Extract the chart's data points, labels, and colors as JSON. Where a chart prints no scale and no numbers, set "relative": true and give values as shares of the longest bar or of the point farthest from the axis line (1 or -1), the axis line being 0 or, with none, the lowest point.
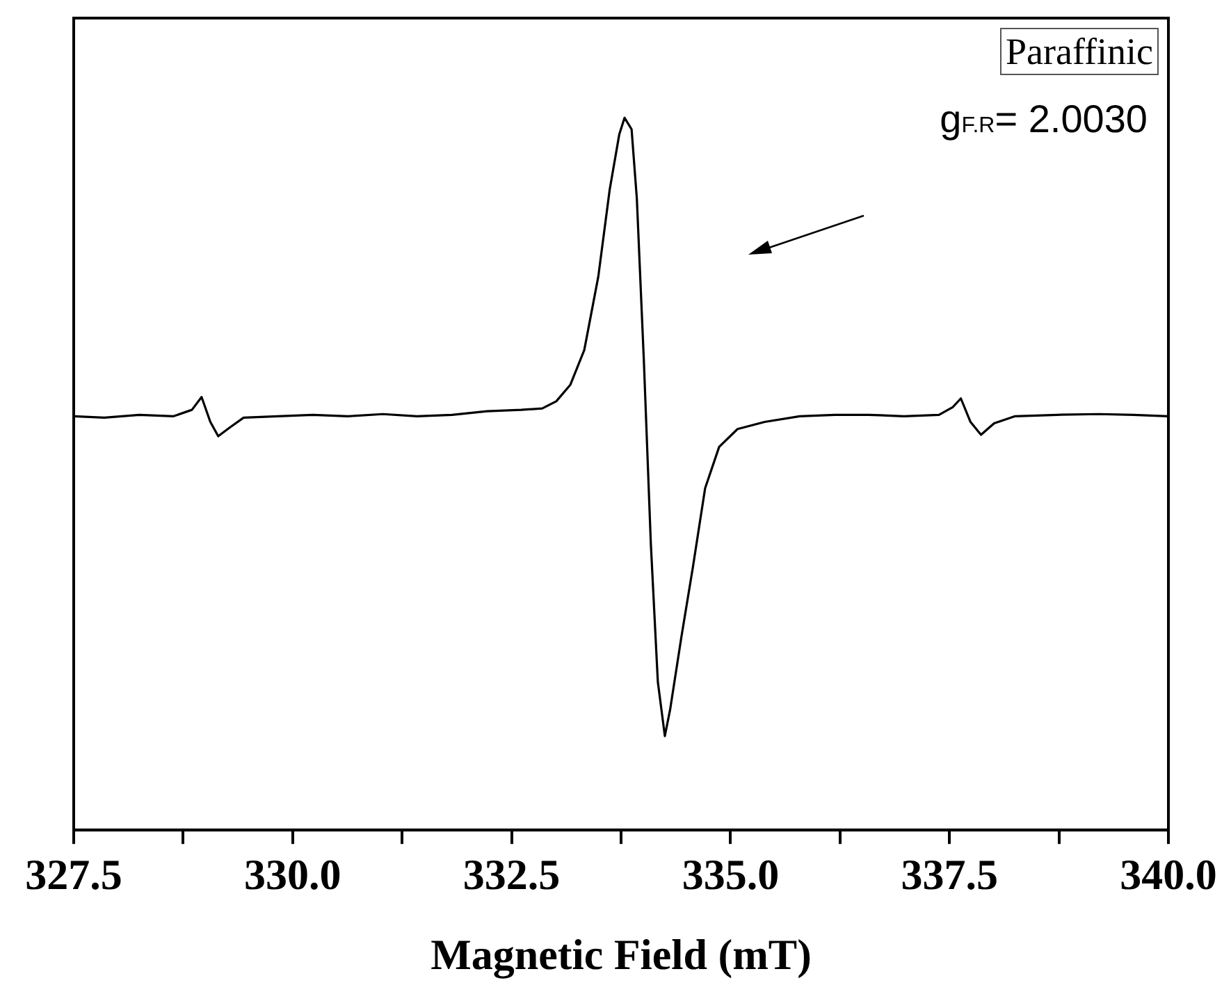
{
  "chart_data": {
    "type": "line",
    "relative": true,
    "xlabel": "Magnetic Field (mT)",
    "tick_labels": "x",
    "marker": "none",
    "line_style": "solid",
    "annotations": [
      "Paraffinic",
      "g$_{F.R}$= 2.0030"
    ],
    "xlim": [
      327.5,
      340.0
    ],
    "xticks": [
      {
        "value": 327.5,
        "label": "327.5"
      },
      {
        "value": 328.75,
        "label": null
      },
      {
        "value": 330,
        "label": "330.0"
      },
      {
        "value": 331.25,
        "label": null
      },
      {
        "value": 332.5,
        "label": "332.5"
      },
      {
        "value": 333.75,
        "label": null
      },
      {
        "value": 335,
        "label": "335.0"
      },
      {
        "value": 336.25,
        "label": null
      },
      {
        "value": 337.5,
        "label": "337.5"
      },
      {
        "value": 338.75,
        "label": null
      },
      {
        "value": 340,
        "label": "340.0"
      }
    ],
    "x": [
      327.5,
      327.85,
      328.25,
      328.64,
      328.85,
      328.96,
      329.06,
      329.15,
      329.28,
      329.44,
      329.83,
      330.23,
      330.63,
      331.03,
      331.42,
      331.82,
      332.22,
      332.61,
      332.85,
      333.01,
      333.17,
      333.33,
      333.49,
      333.62,
      333.73,
      333.79,
      333.87,
      333.93,
      334.01,
      334.09,
      334.17,
      334.25,
      334.31,
      334.44,
      334.57,
      334.71,
      334.87,
      335.08,
      335.39,
      335.79,
      336.19,
      336.58,
      336.98,
      337.38,
      337.54,
      337.63,
      337.74,
      337.86,
      338.01,
      338.25,
      338.73,
      339.21,
      339.6,
      340.0
    ],
    "series": [
      {
        "color": "#000000",
        "values": [
          0.581,
          0.579,
          0.583,
          0.581,
          0.59,
          0.608,
          0.573,
          0.553,
          0.565,
          0.579,
          0.581,
          0.583,
          0.581,
          0.584,
          0.581,
          0.583,
          0.588,
          0.59,
          0.592,
          0.602,
          0.625,
          0.674,
          0.777,
          0.899,
          0.977,
          1.0,
          0.984,
          0.887,
          0.66,
          0.402,
          0.208,
          0.132,
          0.169,
          0.272,
          0.369,
          0.48,
          0.538,
          0.563,
          0.573,
          0.581,
          0.583,
          0.583,
          0.581,
          0.583,
          0.594,
          0.606,
          0.573,
          0.555,
          0.571,
          0.581,
          0.583,
          0.584,
          0.583,
          0.581
        ]
      }
    ]
  }
}
